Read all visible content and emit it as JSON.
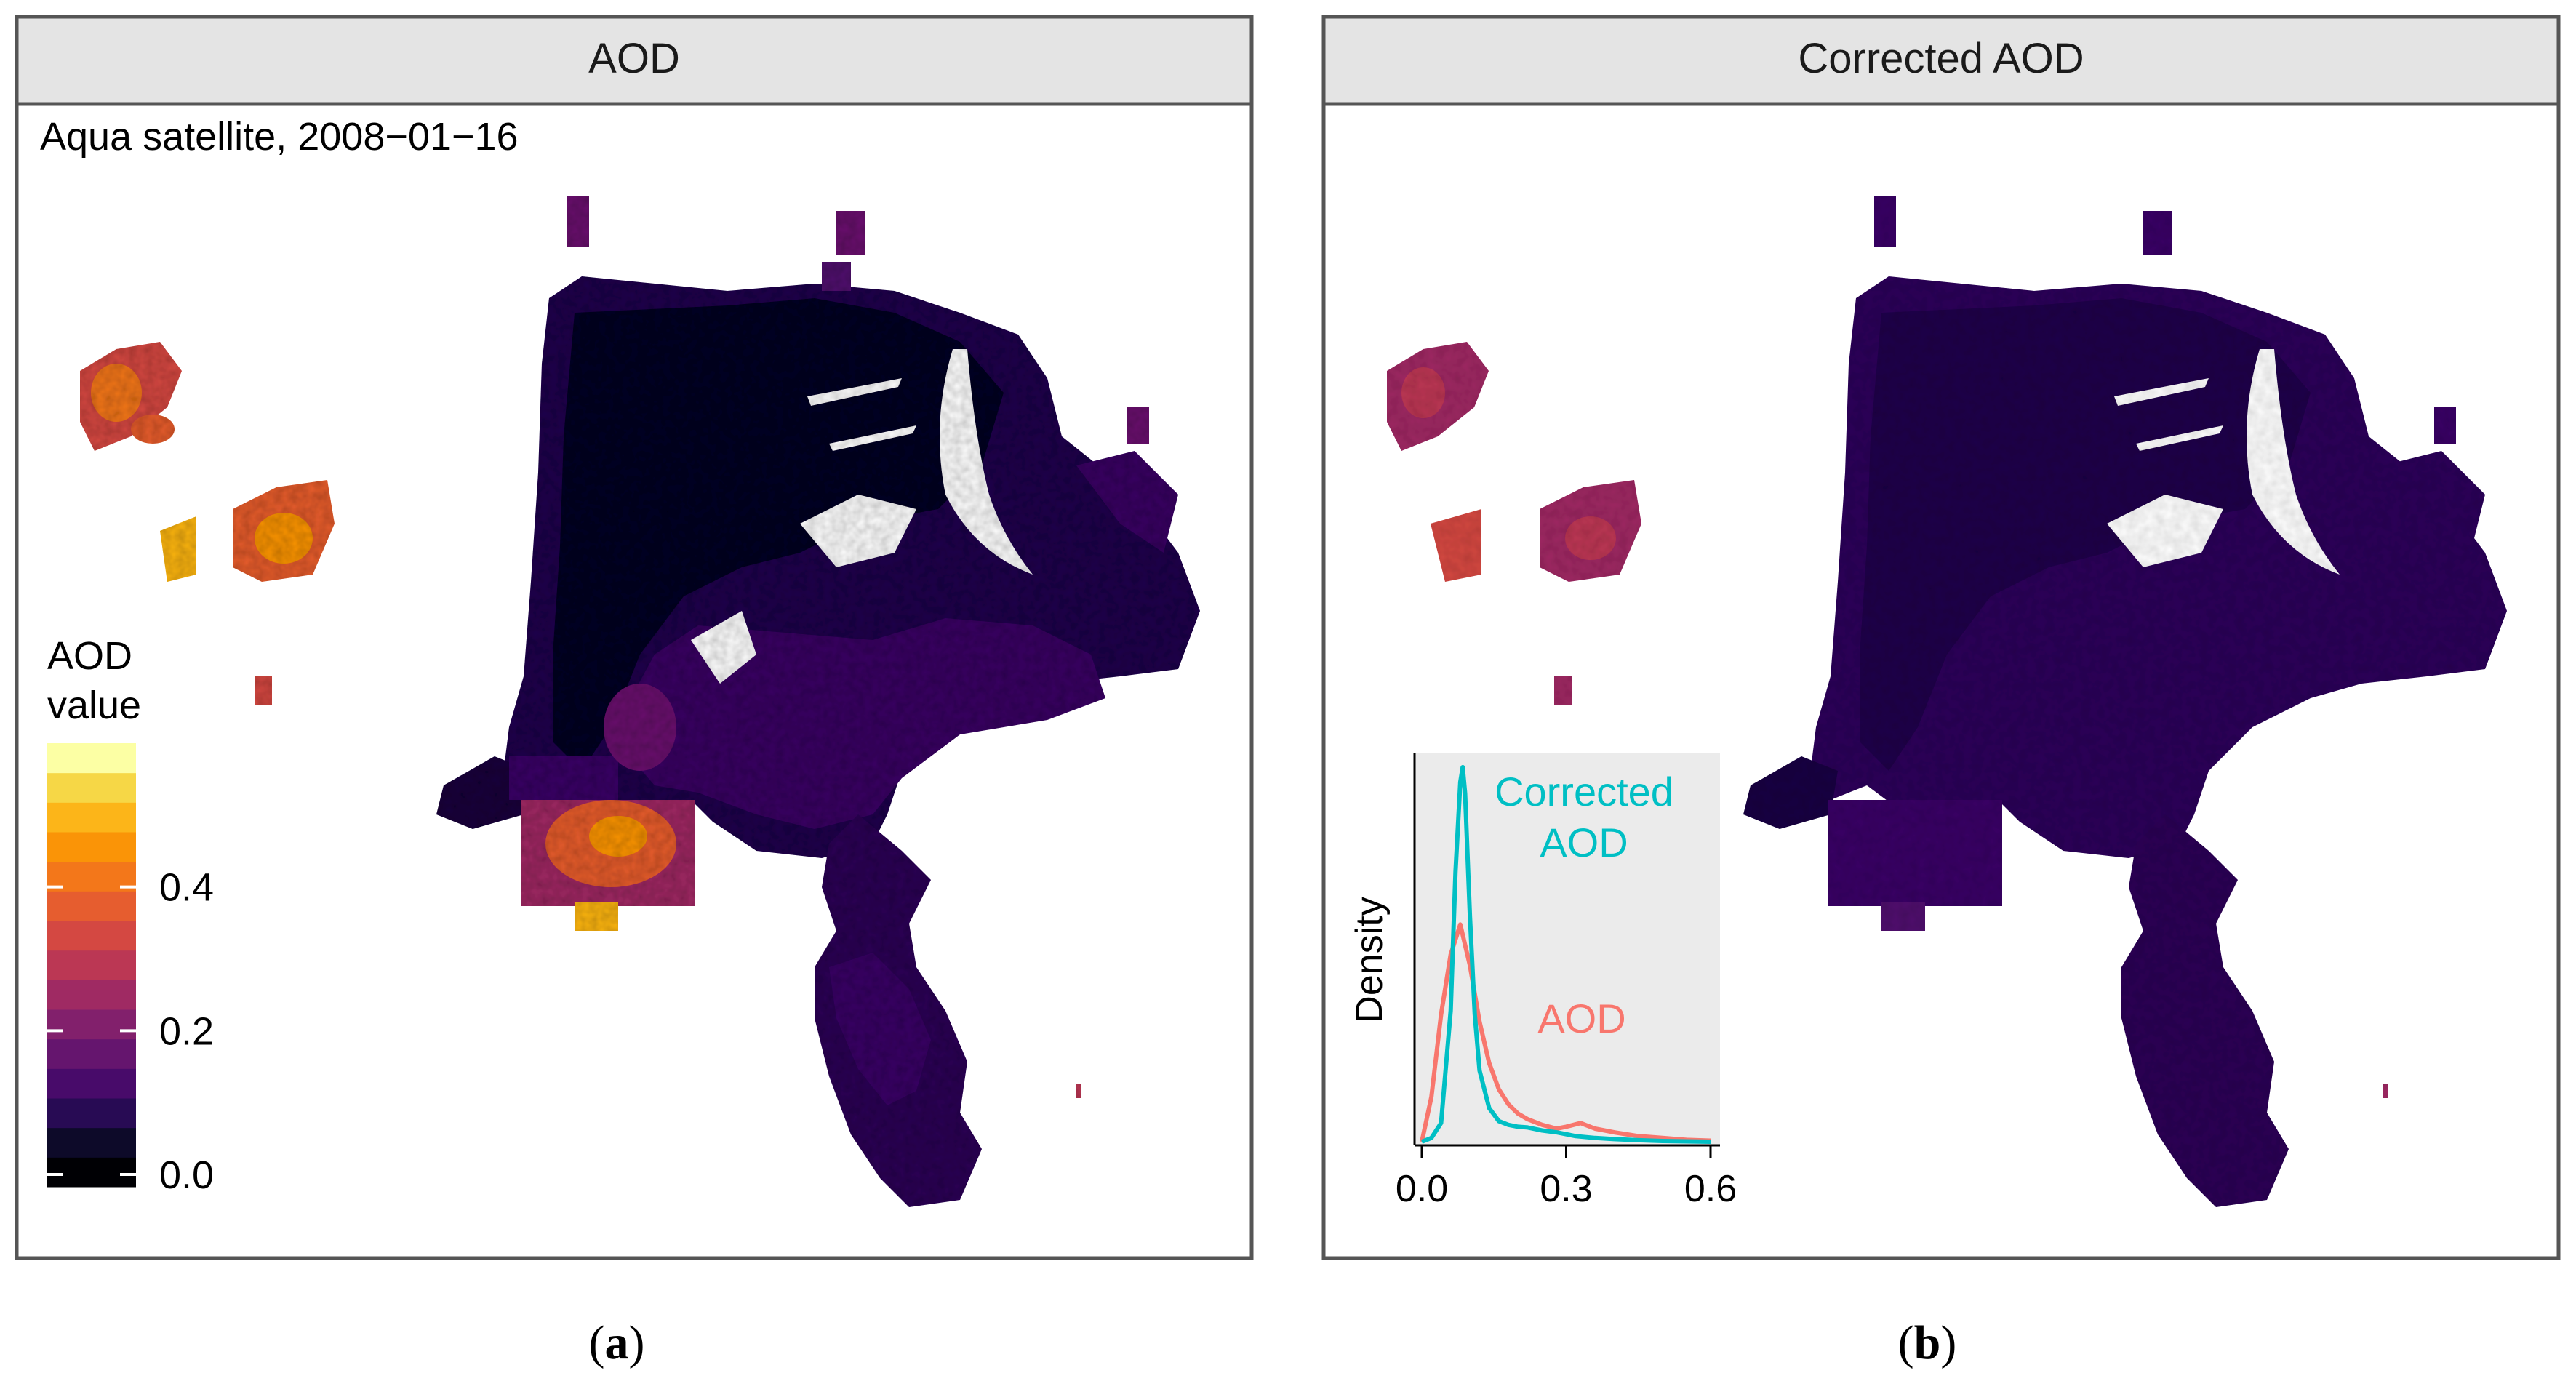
{
  "panels": {
    "a": {
      "strip_title": "AOD",
      "annotation": "Aqua satellite, 2008−01−16",
      "caption_letter": "a",
      "caption_open": "(",
      "caption_close": ")"
    },
    "b": {
      "strip_title": "Corrected AOD",
      "caption_letter": "b",
      "caption_open": "(",
      "caption_close": ")"
    }
  },
  "legend": {
    "title_line1": "AOD",
    "title_line2": "value",
    "ticks": [
      "0.0",
      "0.2",
      "0.4"
    ],
    "tick_values": [
      0.0,
      0.2,
      0.4
    ],
    "range": [
      0,
      0.6
    ],
    "colors": [
      "#000004",
      "#0d0a29",
      "#280b54",
      "#480b6a",
      "#65156e",
      "#82206c",
      "#9f2a63",
      "#bb3754",
      "#d44842",
      "#e65d2f",
      "#f3771a",
      "#fa9407",
      "#fcb519",
      "#f6d746",
      "#fcffa4"
    ]
  },
  "chart_data": {
    "type": "line",
    "title": "",
    "xlabel": "",
    "ylabel": "Density",
    "xlim": [
      0,
      0.6
    ],
    "ylim": [
      0,
      1
    ],
    "x_ticks": [
      "0.0",
      "0.3",
      "0.6"
    ],
    "x_tick_values": [
      0.0,
      0.3,
      0.6
    ],
    "series": [
      {
        "name": "AOD",
        "label": "AOD",
        "color": "#f8766d",
        "x": [
          0.0,
          0.02,
          0.04,
          0.06,
          0.08,
          0.1,
          0.12,
          0.14,
          0.16,
          0.18,
          0.2,
          0.22,
          0.25,
          0.28,
          0.3,
          0.33,
          0.36,
          0.4,
          0.45,
          0.5,
          0.55,
          0.6
        ],
        "y": [
          0.0,
          0.12,
          0.34,
          0.5,
          0.58,
          0.47,
          0.32,
          0.21,
          0.14,
          0.1,
          0.075,
          0.06,
          0.045,
          0.035,
          0.04,
          0.05,
          0.035,
          0.025,
          0.015,
          0.01,
          0.005,
          0.003
        ]
      },
      {
        "name": "Corrected AOD",
        "label_line1": "Corrected",
        "label_line2": "AOD",
        "color": "#00bfc4",
        "x": [
          0.0,
          0.02,
          0.04,
          0.06,
          0.07,
          0.08,
          0.085,
          0.09,
          0.1,
          0.11,
          0.12,
          0.14,
          0.16,
          0.18,
          0.2,
          0.22,
          0.25,
          0.28,
          0.32,
          0.36,
          0.4,
          0.45,
          0.5,
          0.55,
          0.6
        ],
        "y": [
          0.0,
          0.01,
          0.05,
          0.35,
          0.72,
          0.96,
          1.0,
          0.93,
          0.6,
          0.34,
          0.19,
          0.09,
          0.055,
          0.045,
          0.04,
          0.038,
          0.03,
          0.025,
          0.015,
          0.01,
          0.007,
          0.004,
          0.002,
          0.001,
          0.0
        ]
      }
    ]
  }
}
